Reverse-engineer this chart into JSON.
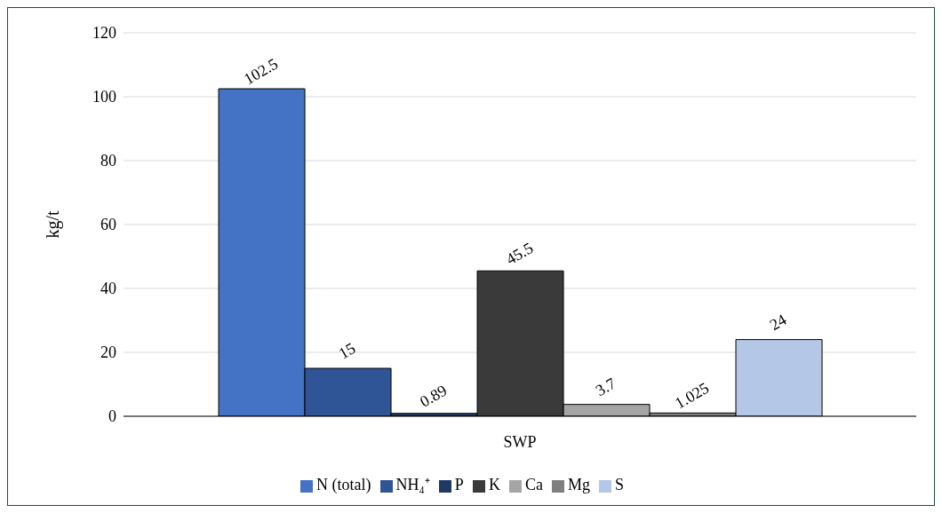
{
  "chart_data": {
    "type": "bar",
    "ylabel": "kg/t",
    "categories": [
      "SWP"
    ],
    "series": [
      {
        "name": "N (total)",
        "color": "#4472c4",
        "values": [
          102.5
        ]
      },
      {
        "name": "NH₄⁺",
        "color": "#2f5597",
        "values": [
          15
        ]
      },
      {
        "name": "P",
        "color": "#203864",
        "values": [
          0.89
        ]
      },
      {
        "name": "K",
        "color": "#3a3a3a",
        "values": [
          45.5
        ]
      },
      {
        "name": "Ca",
        "color": "#a5a5a5",
        "values": [
          3.7
        ]
      },
      {
        "name": "Mg",
        "color": "#7f7f7f",
        "values": [
          1.025
        ]
      },
      {
        "name": "S",
        "color": "#b4c7e7",
        "values": [
          24
        ]
      }
    ],
    "ylim": [
      0,
      120
    ],
    "yticks": [
      0,
      20,
      40,
      60,
      80,
      100,
      120
    ],
    "grid": "y",
    "legend": "bottom",
    "data_labels": true
  }
}
